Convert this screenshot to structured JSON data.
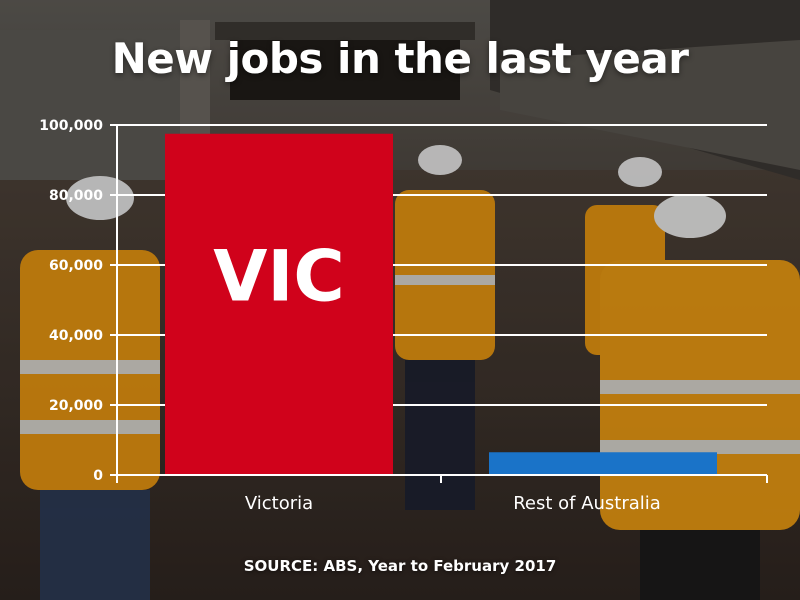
{
  "title": "New jobs in the last year",
  "source": "SOURCE: ABS, Year to February 2017",
  "colors": {
    "victoria": "#d0021b",
    "rest": "#1a73c8",
    "axis": "#ffffff",
    "grid": "#ffffff"
  },
  "chart_data": {
    "type": "bar",
    "categories": [
      "Victoria",
      "Rest of Australia"
    ],
    "values": [
      97500,
      6500
    ],
    "bar_labels": [
      "VIC",
      ""
    ],
    "ylim": [
      0,
      100000
    ],
    "yticks": [
      0,
      20000,
      40000,
      60000,
      80000,
      100000
    ],
    "ytick_labels": [
      "0",
      "20,000",
      "40,000",
      "60,000",
      "80,000",
      "100,000"
    ],
    "grid": true,
    "xlabel": "",
    "ylabel": ""
  }
}
